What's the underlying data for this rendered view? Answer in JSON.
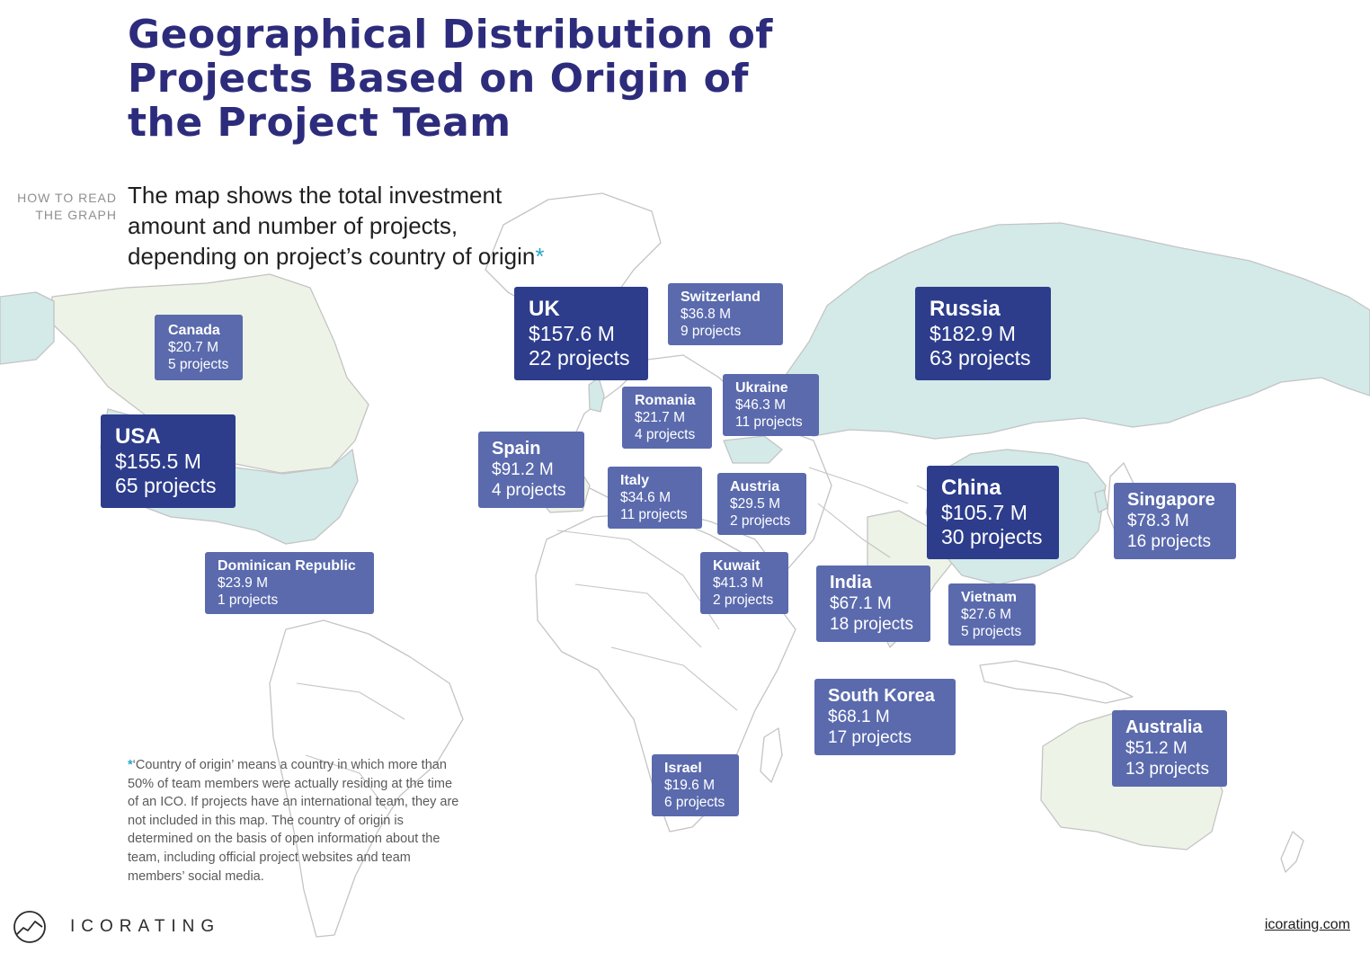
{
  "title": "Geographical Distribution of Projects Based on Origin of the Project Team",
  "how_to_read_label": "HOW TO READ THE GRAPH",
  "intro": "The map shows the total investment amount and number of projects, depending on project’s country of origin",
  "intro_asterisk": "*",
  "footnote_asterisk": "*",
  "footnote": "‘Country of origin’ means a country in which more than 50% of team members were actually residing at the time of an ICO. If projects have an international team, they are not included in this map. The country of origin is determined on the basis of open information about the team, including official project websites and team members’ social media.",
  "brand": "ICORATING",
  "website": "icorating.com",
  "colors": {
    "title": "#2d2c7c",
    "box_dark": "#2d3d8c",
    "box_light": "#5a6aad",
    "land_highlight": "#d3eae8",
    "land_light": "#edf3e6",
    "border": "#c4c4c4",
    "asterisk": "#2aa7c9"
  },
  "map_data": {
    "type": "world choropleth with callouts",
    "countries": [
      {
        "country": "UK",
        "amount": "$157.6 M",
        "projects": "22 projects",
        "amount_musd": 157.6,
        "project_count": 22
      },
      {
        "country": "Switzerland",
        "amount": "$36.8 M",
        "projects": "9 projects",
        "amount_musd": 36.8,
        "project_count": 9
      },
      {
        "country": "Russia",
        "amount": "$182.9 M",
        "projects": "63 projects",
        "amount_musd": 182.9,
        "project_count": 63
      },
      {
        "country": "Canada",
        "amount": "$20.7 M",
        "projects": "5 projects",
        "amount_musd": 20.7,
        "project_count": 5
      },
      {
        "country": "Romania",
        "amount": "$21.7 M",
        "projects": "4 projects",
        "amount_musd": 21.7,
        "project_count": 4
      },
      {
        "country": "Ukraine",
        "amount": "$46.3 M",
        "projects": "11 projects",
        "amount_musd": 46.3,
        "project_count": 11
      },
      {
        "country": "USA",
        "amount": "$155.5 M",
        "projects": "65 projects",
        "amount_musd": 155.5,
        "project_count": 65
      },
      {
        "country": "Spain",
        "amount": "$91.2 M",
        "projects": "4 projects",
        "amount_musd": 91.2,
        "project_count": 4
      },
      {
        "country": "Italy",
        "amount": "$34.6 M",
        "projects": "11 projects",
        "amount_musd": 34.6,
        "project_count": 11
      },
      {
        "country": "Austria",
        "amount": "$29.5 M",
        "projects": "2 projects",
        "amount_musd": 29.5,
        "project_count": 2
      },
      {
        "country": "China",
        "amount": "$105.7 M",
        "projects": "30 projects",
        "amount_musd": 105.7,
        "project_count": 30
      },
      {
        "country": "Singapore",
        "amount": "$78.3 M",
        "projects": "16 projects",
        "amount_musd": 78.3,
        "project_count": 16
      },
      {
        "country": "Dominican Republic",
        "amount": "$23.9 M",
        "projects": "1 projects",
        "amount_musd": 23.9,
        "project_count": 1
      },
      {
        "country": "Kuwait",
        "amount": "$41.3 M",
        "projects": "2 projects",
        "amount_musd": 41.3,
        "project_count": 2
      },
      {
        "country": "India",
        "amount": "$67.1 M",
        "projects": "18 projects",
        "amount_musd": 67.1,
        "project_count": 18
      },
      {
        "country": "Vietnam",
        "amount": "$27.6 M",
        "projects": "5 projects",
        "amount_musd": 27.6,
        "project_count": 5
      },
      {
        "country": "South Korea",
        "amount": "$68.1 M",
        "projects": "17 projects",
        "amount_musd": 68.1,
        "project_count": 17
      },
      {
        "country": "Australia",
        "amount": "$51.2 M",
        "projects": "13 projects",
        "amount_musd": 51.2,
        "project_count": 13
      },
      {
        "country": "Israel",
        "amount": "$19.6 M",
        "projects": "6 projects",
        "amount_musd": 19.6,
        "project_count": 6
      }
    ]
  }
}
